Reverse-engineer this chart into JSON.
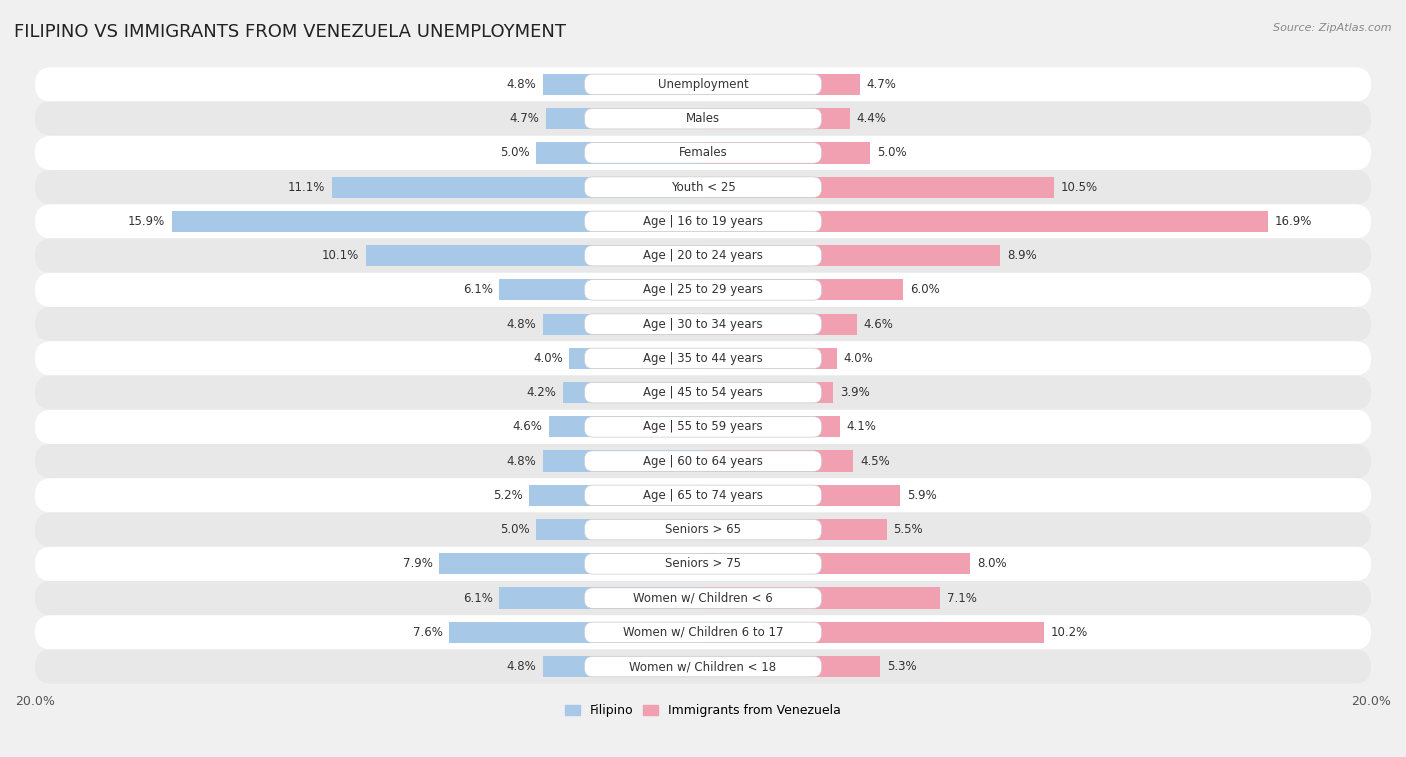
{
  "title": "FILIPINO VS IMMIGRANTS FROM VENEZUELA UNEMPLOYMENT",
  "source": "Source: ZipAtlas.com",
  "categories": [
    "Unemployment",
    "Males",
    "Females",
    "Youth < 25",
    "Age | 16 to 19 years",
    "Age | 20 to 24 years",
    "Age | 25 to 29 years",
    "Age | 30 to 34 years",
    "Age | 35 to 44 years",
    "Age | 45 to 54 years",
    "Age | 55 to 59 years",
    "Age | 60 to 64 years",
    "Age | 65 to 74 years",
    "Seniors > 65",
    "Seniors > 75",
    "Women w/ Children < 6",
    "Women w/ Children 6 to 17",
    "Women w/ Children < 18"
  ],
  "filipino_values": [
    4.8,
    4.7,
    5.0,
    11.1,
    15.9,
    10.1,
    6.1,
    4.8,
    4.0,
    4.2,
    4.6,
    4.8,
    5.2,
    5.0,
    7.9,
    6.1,
    7.6,
    4.8
  ],
  "venezuela_values": [
    4.7,
    4.4,
    5.0,
    10.5,
    16.9,
    8.9,
    6.0,
    4.6,
    4.0,
    3.9,
    4.1,
    4.5,
    5.9,
    5.5,
    8.0,
    7.1,
    10.2,
    5.3
  ],
  "filipino_color": "#a8c8e8",
  "venezuela_color": "#f0a0b0",
  "max_val": 20.0,
  "background_color": "#f0f0f0",
  "row_color_light": "#ffffff",
  "row_color_dark": "#e8e8e8",
  "title_fontsize": 13,
  "label_fontsize": 8.5,
  "value_fontsize": 8.5
}
